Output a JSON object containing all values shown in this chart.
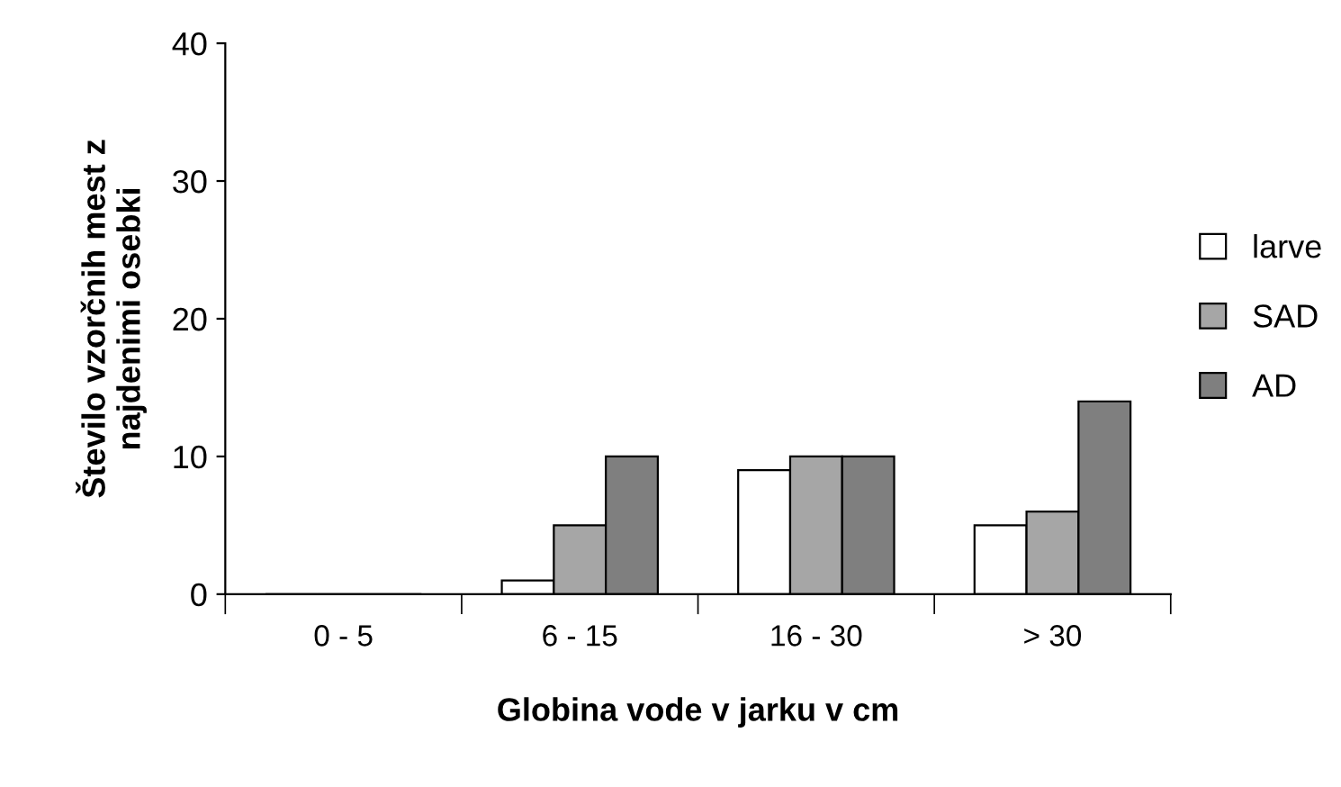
{
  "chart_data": {
    "type": "bar",
    "xlabel": "Globina vode v jarku v cm",
    "ylabel": "Število vzorčnih mest z\nnajdenimi osebki",
    "categories": [
      "0 - 5",
      "6 - 15",
      "16 - 30",
      "> 30"
    ],
    "series": [
      {
        "name": "larve",
        "color": "#ffffff",
        "values": [
          0,
          1,
          9,
          5
        ]
      },
      {
        "name": "SAD",
        "color": "#a6a6a6",
        "values": [
          0,
          5,
          10,
          6
        ]
      },
      {
        "name": "AD",
        "color": "#7f7f7f",
        "values": [
          0,
          10,
          10,
          14
        ]
      }
    ],
    "ylim": [
      0,
      40
    ],
    "yticks": [
      0,
      10,
      20,
      30,
      40
    ],
    "grid": false,
    "legend": "right"
  }
}
